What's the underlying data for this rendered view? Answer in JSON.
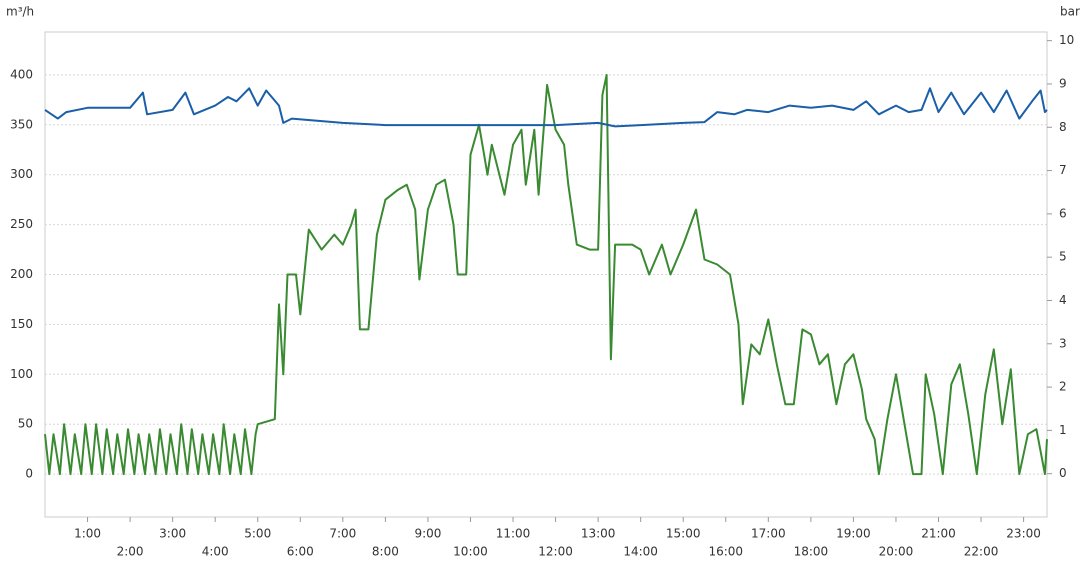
{
  "chart_data": {
    "type": "line",
    "y_label": "m³/h",
    "y2_label": "bar",
    "xlim": [
      0,
      23.55
    ],
    "xticks": [
      {
        "value": 1,
        "label": "1:00"
      },
      {
        "value": 2,
        "label": "2:00"
      },
      {
        "value": 3,
        "label": "3:00"
      },
      {
        "value": 4,
        "label": "4:00"
      },
      {
        "value": 5,
        "label": "5:00"
      },
      {
        "value": 6,
        "label": "6:00"
      },
      {
        "value": 7,
        "label": "7:00"
      },
      {
        "value": 8,
        "label": "8:00"
      },
      {
        "value": 9,
        "label": "9:00"
      },
      {
        "value": 10,
        "label": "10:00"
      },
      {
        "value": 11,
        "label": "11:00"
      },
      {
        "value": 12,
        "label": "12:00"
      },
      {
        "value": 13,
        "label": "13:00"
      },
      {
        "value": 14,
        "label": "14:00"
      },
      {
        "value": 15,
        "label": "15:00"
      },
      {
        "value": 16,
        "label": "16:00"
      },
      {
        "value": 17,
        "label": "17:00"
      },
      {
        "value": 18,
        "label": "18:00"
      },
      {
        "value": 19,
        "label": "19:00"
      },
      {
        "value": 20,
        "label": "20:00"
      },
      {
        "value": 21,
        "label": "21:00"
      },
      {
        "value": 22,
        "label": "22:00"
      },
      {
        "value": 23,
        "label": "23:00"
      }
    ],
    "ylim": [
      -43,
      443
    ],
    "yticks": [
      0,
      50,
      100,
      150,
      200,
      250,
      300,
      350,
      400
    ],
    "y2lim": [
      -1,
      10.2
    ],
    "y2ticks": [
      0,
      1,
      2,
      3,
      4,
      5,
      6,
      7,
      8,
      9,
      10
    ],
    "grid": true,
    "series": [
      {
        "color": "#3a8a32",
        "x": [
          0,
          0.1,
          0.2,
          0.35,
          0.45,
          0.6,
          0.7,
          0.85,
          0.95,
          1.1,
          1.2,
          1.35,
          1.45,
          1.6,
          1.7,
          1.85,
          1.95,
          2.1,
          2.2,
          2.35,
          2.45,
          2.6,
          2.7,
          2.85,
          2.95,
          3.1,
          3.2,
          3.35,
          3.45,
          3.6,
          3.7,
          3.85,
          3.95,
          4.1,
          4.2,
          4.35,
          4.45,
          4.6,
          4.7,
          4.85,
          4.95,
          5.0,
          5.4,
          5.5,
          5.6,
          5.7,
          5.9,
          6.0,
          6.2,
          6.5,
          6.8,
          7.0,
          7.2,
          7.3,
          7.4,
          7.6,
          7.8,
          8.0,
          8.3,
          8.5,
          8.7,
          8.8,
          9.0,
          9.2,
          9.4,
          9.6,
          9.7,
          9.9,
          10.0,
          10.2,
          10.4,
          10.5,
          10.8,
          11.0,
          11.2,
          11.3,
          11.5,
          11.6,
          11.8,
          12.0,
          12.2,
          12.3,
          12.5,
          12.8,
          13.0,
          13.1,
          13.2,
          13.3,
          13.4,
          13.8,
          14.0,
          14.2,
          14.5,
          14.7,
          15.0,
          15.3,
          15.5,
          15.8,
          16.1,
          16.3,
          16.4,
          16.6,
          16.8,
          17.0,
          17.2,
          17.4,
          17.6,
          17.8,
          18.0,
          18.2,
          18.4,
          18.6,
          18.8,
          19.0,
          19.2,
          19.3,
          19.5,
          19.6,
          19.8,
          20.0,
          20.2,
          20.4,
          20.6,
          20.7,
          20.9,
          21.1,
          21.3,
          21.5,
          21.7,
          21.9,
          22.1,
          22.3,
          22.5,
          22.7,
          22.9,
          23.1,
          23.3,
          23.5,
          23.55
        ],
        "values": [
          40,
          0,
          40,
          0,
          50,
          0,
          40,
          0,
          50,
          0,
          50,
          0,
          45,
          0,
          40,
          0,
          45,
          0,
          40,
          0,
          40,
          0,
          45,
          0,
          40,
          0,
          50,
          0,
          45,
          0,
          40,
          0,
          40,
          0,
          50,
          0,
          40,
          0,
          45,
          0,
          40,
          50,
          55,
          170,
          100,
          200,
          200,
          160,
          245,
          225,
          240,
          230,
          250,
          265,
          145,
          145,
          240,
          275,
          285,
          290,
          265,
          195,
          265,
          290,
          295,
          250,
          200,
          200,
          320,
          350,
          300,
          330,
          280,
          330,
          345,
          290,
          345,
          280,
          390,
          345,
          330,
          290,
          230,
          225,
          225,
          380,
          400,
          115,
          230,
          230,
          225,
          200,
          230,
          200,
          230,
          265,
          215,
          210,
          200,
          150,
          70,
          130,
          120,
          155,
          110,
          70,
          70,
          145,
          140,
          110,
          120,
          70,
          110,
          120,
          85,
          55,
          35,
          0,
          55,
          100,
          50,
          0,
          0,
          100,
          60,
          0,
          90,
          110,
          60,
          0,
          80,
          125,
          50,
          105,
          0,
          40,
          45,
          0,
          35
        ]
      },
      {
        "color": "#1a5fa8",
        "axis": "y2",
        "x": [
          0,
          0.3,
          0.5,
          1.0,
          2.0,
          2.3,
          2.4,
          3.0,
          3.3,
          3.5,
          4.0,
          4.3,
          4.5,
          4.8,
          5.0,
          5.2,
          5.5,
          5.6,
          5.8,
          7.0,
          8.0,
          9.0,
          10.0,
          11.0,
          12.0,
          13.0,
          13.4,
          14.0,
          15.0,
          15.5,
          15.8,
          16.2,
          16.5,
          17.0,
          17.5,
          18.0,
          18.5,
          19.0,
          19.3,
          19.6,
          20.0,
          20.3,
          20.6,
          20.8,
          21.0,
          21.3,
          21.6,
          22.0,
          22.3,
          22.6,
          22.9,
          23.2,
          23.4,
          23.5,
          23.55
        ],
        "values": [
          8.4,
          8.2,
          8.35,
          8.45,
          8.45,
          8.8,
          8.3,
          8.4,
          8.8,
          8.3,
          8.5,
          8.7,
          8.6,
          8.9,
          8.5,
          8.85,
          8.5,
          8.1,
          8.2,
          8.1,
          8.05,
          8.05,
          8.05,
          8.05,
          8.05,
          8.1,
          8.02,
          8.05,
          8.1,
          8.12,
          8.35,
          8.3,
          8.4,
          8.35,
          8.5,
          8.45,
          8.5,
          8.4,
          8.6,
          8.3,
          8.5,
          8.35,
          8.4,
          8.9,
          8.35,
          8.8,
          8.3,
          8.8,
          8.35,
          8.85,
          8.2,
          8.6,
          8.85,
          8.35,
          8.4
        ]
      }
    ]
  }
}
